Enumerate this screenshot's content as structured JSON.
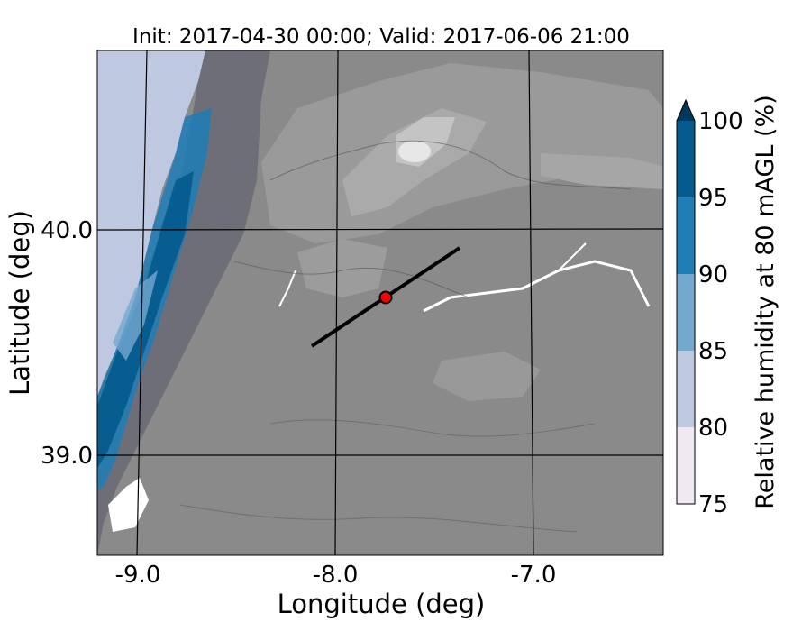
{
  "title": "Init: 2017-04-30 00:00; Valid: 2017-06-06 21:00",
  "xlabel": "Longitude (deg)",
  "ylabel": "Latitude (deg)",
  "x_ticks": [
    "-9.0",
    "-8.0",
    "-7.0"
  ],
  "y_ticks": [
    "40.0",
    "39.0"
  ],
  "colorbar": {
    "label": "Relative humidity at 80 mAGL (%)",
    "ticks": [
      "75",
      "80",
      "85",
      "90",
      "95",
      "100"
    ],
    "levels": [
      {
        "from": 75,
        "to": 80,
        "color": "#efe9f3"
      },
      {
        "from": 80,
        "to": 85,
        "color": "#bec8e1"
      },
      {
        "from": 85,
        "to": 90,
        "color": "#74a9cf"
      },
      {
        "from": 90,
        "to": 95,
        "color": "#1f7eb6"
      },
      {
        "from": 95,
        "to": 100,
        "color": "#045a8d"
      }
    ],
    "extend_color": "#023858"
  },
  "map": {
    "terrain_shading": "grayscale",
    "ocean_color": "#bec8e1",
    "cross_section_line": {
      "start": {
        "lon": -8.12,
        "lat": 39.48
      },
      "end": {
        "lon": -7.37,
        "lat": 39.91
      }
    },
    "marker": {
      "lon": -7.75,
      "lat": 39.69,
      "color": "#ff0000"
    }
  }
}
